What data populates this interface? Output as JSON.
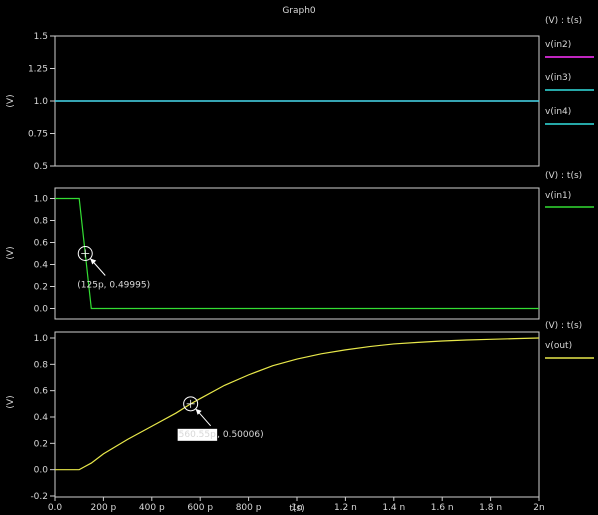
{
  "window": {
    "title": "Graph0"
  },
  "x_axis": {
    "label": "t(s)",
    "ticks": [
      {
        "v": 0,
        "label": "0.0"
      },
      {
        "v": 200,
        "label": "200 p"
      },
      {
        "v": 400,
        "label": "400 p"
      },
      {
        "v": 600,
        "label": "600 p"
      },
      {
        "v": 800,
        "label": "800 p"
      },
      {
        "v": 1000,
        "label": "1n"
      },
      {
        "v": 1200,
        "label": "1.2 n"
      },
      {
        "v": 1400,
        "label": "1.4 n"
      },
      {
        "v": 1600,
        "label": "1.6 n"
      },
      {
        "v": 1800,
        "label": "1.8 n"
      },
      {
        "v": 2000,
        "label": "2n"
      }
    ]
  },
  "chart_data": [
    {
      "type": "line",
      "ylabel": "(V)",
      "ylim": [
        0.5,
        1.5
      ],
      "yticks": [
        {
          "v": 1.5,
          "label": "1.5"
        },
        {
          "v": 1.25,
          "label": "1.25"
        },
        {
          "v": 1.0,
          "label": "1.0"
        },
        {
          "v": 0.75,
          "label": "0.75"
        },
        {
          "v": 0.5,
          "label": "0.5"
        }
      ],
      "legend_header": "(V) : t(s)",
      "series": [
        {
          "name": "v(in2)",
          "color": "#ff33ff",
          "x": [
            0,
            2000
          ],
          "y": [
            1.0,
            1.0
          ]
        },
        {
          "name": "v(in3)",
          "color": "#33e0e0",
          "x": [
            0,
            2000
          ],
          "y": [
            1.0,
            1.0
          ]
        },
        {
          "name": "v(in4)",
          "color": "#33e0e0",
          "x": [
            0,
            2000
          ],
          "y": [
            1.0,
            1.0
          ]
        }
      ]
    },
    {
      "type": "line",
      "ylabel": "(V)",
      "ylim": [
        -0.05,
        1.05
      ],
      "yticks": [
        {
          "v": 1.0,
          "label": "1.0"
        },
        {
          "v": 0.8,
          "label": "0.8"
        },
        {
          "v": 0.6,
          "label": "0.6"
        },
        {
          "v": 0.4,
          "label": "0.4"
        },
        {
          "v": 0.2,
          "label": "0.2"
        },
        {
          "v": 0.0,
          "label": "0.0"
        }
      ],
      "legend_header": "(V) : t(s)",
      "series": [
        {
          "name": "v(in1)",
          "color": "#33dd33",
          "x": [
            0,
            100,
            150,
            2000
          ],
          "y": [
            1.0,
            1.0,
            0.0,
            0.0
          ]
        }
      ],
      "marker": {
        "x": 125,
        "y": 0.49995,
        "label": "(125p, 0.49995)"
      }
    },
    {
      "type": "line",
      "ylabel": "(V)",
      "ylim": [
        -0.2,
        1.0
      ],
      "yticks": [
        {
          "v": 1.0,
          "label": "1.0"
        },
        {
          "v": 0.8,
          "label": "0.8"
        },
        {
          "v": 0.6,
          "label": "0.6"
        },
        {
          "v": 0.4,
          "label": "0.4"
        },
        {
          "v": 0.2,
          "label": "0.2"
        },
        {
          "v": 0.0,
          "label": "0.0"
        },
        {
          "v": -0.2,
          "label": "-0.2"
        }
      ],
      "legend_header": "(V) : t(s)",
      "series": [
        {
          "name": "v(out)",
          "color": "#e8e84a",
          "x": [
            0,
            100,
            120,
            150,
            200,
            300,
            400,
            500,
            560.55,
            600,
            700,
            800,
            900,
            1000,
            1100,
            1200,
            1300,
            1400,
            1500,
            1600,
            1700,
            1800,
            1900,
            2000
          ],
          "y": [
            0.0,
            0.0,
            0.02,
            0.05,
            0.12,
            0.23,
            0.33,
            0.43,
            0.50006,
            0.54,
            0.64,
            0.72,
            0.79,
            0.84,
            0.88,
            0.91,
            0.935,
            0.955,
            0.967,
            0.977,
            0.985,
            0.99,
            0.995,
            1.0
          ]
        }
      ],
      "marker": {
        "x": 560.55,
        "y": 0.50006,
        "label_x": "560.55p",
        "label_rest": ", 0.50006)"
      }
    }
  ]
}
